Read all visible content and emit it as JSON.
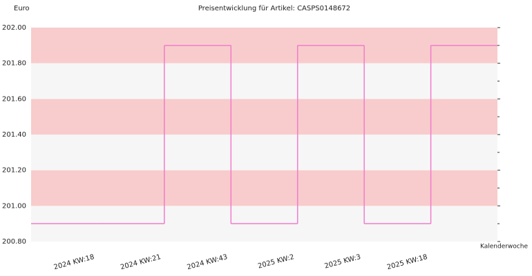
{
  "chart_data": {
    "type": "step",
    "title": "Preisentwicklung für Artikel: CASPS0148672",
    "y_label": "Euro",
    "x_label": "Kalenderwoche",
    "categories": [
      "2024 KW:18",
      "2024 KW:21",
      "2024 KW:43",
      "2025 KW:2",
      "2025 KW:3",
      "2025 KW:18",
      null
    ],
    "series": [
      {
        "color": "#f07ccc",
        "values": [
          200.9,
          200.9,
          201.9,
          200.9,
          201.9,
          200.9,
          201.9
        ]
      }
    ],
    "ylim": [
      200.8,
      202
    ],
    "yticks": [
      {
        "value": 200.8,
        "label": "200.80"
      },
      {
        "value": 201,
        "label": "201.00"
      },
      {
        "value": 201.2,
        "label": "201.20"
      },
      {
        "value": 201.4,
        "label": "201.40"
      },
      {
        "value": 201.6,
        "label": "201.60"
      },
      {
        "value": 201.8,
        "label": "201.80"
      },
      {
        "value": 202,
        "label": "202.00"
      }
    ],
    "minor_yticks": [
      200.9,
      201.1,
      201.3,
      201.5,
      201.7,
      201.9
    ],
    "band_colors": [
      "#f6f6f6",
      "#f8cccc"
    ]
  }
}
